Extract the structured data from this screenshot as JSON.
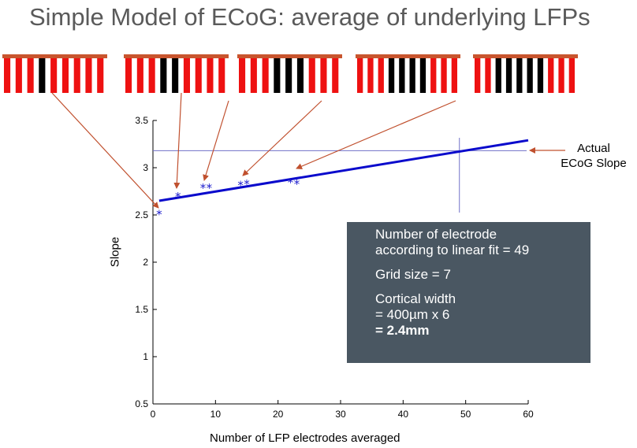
{
  "slide": {
    "title": "Simple Model of ECoG: average of underlying LFPs"
  },
  "combs": [
    {
      "total_teeth": 9,
      "black_teeth": [
        4
      ]
    },
    {
      "total_teeth": 9,
      "black_teeth": [
        4,
        5
      ]
    },
    {
      "total_teeth": 9,
      "black_teeth": [
        4,
        5,
        6
      ]
    },
    {
      "total_teeth": 10,
      "black_teeth": [
        4,
        5,
        6,
        7
      ]
    },
    {
      "total_teeth": 10,
      "black_teeth": [
        3,
        4,
        5,
        6,
        7
      ]
    }
  ],
  "colors": {
    "comb_red": "#ee1111",
    "comb_black": "#000000",
    "comb_bar": "#c8552e",
    "arrow": "#c0502e",
    "fit_line": "#0a0acc",
    "ref_line": "#7070c8",
    "points": "#1a1acc",
    "info_bg": "#4a5762"
  },
  "chart_data": {
    "type": "scatter",
    "xlabel": "Number of LFP electrodes averaged",
    "ylabel": "Slope",
    "xlim": [
      0,
      60
    ],
    "ylim": [
      0.5,
      3.5
    ],
    "xticks": [
      0,
      10,
      20,
      30,
      40,
      50,
      60
    ],
    "yticks": [
      0.5,
      1,
      1.5,
      2,
      2.5,
      3,
      3.5
    ],
    "points": {
      "x": [
        1,
        4,
        8,
        9,
        14,
        15,
        22,
        23
      ],
      "y": [
        2.52,
        2.71,
        2.8,
        2.8,
        2.83,
        2.84,
        2.86,
        2.84
      ]
    },
    "fit_line": {
      "x": [
        1,
        60
      ],
      "y": [
        2.65,
        3.29
      ]
    },
    "reference": {
      "actual_slope": 3.18,
      "electrodes_at_fit": 49
    }
  },
  "annotation": {
    "line1": "Actual",
    "line2": "ECoG Slope"
  },
  "info": {
    "line1": "Number of electrode",
    "line2": "according to linear fit = 49",
    "line3": "Grid size = 7",
    "line4": "Cortical width",
    "line5": "= 400µm x 6",
    "line6": "= 2.4mm"
  }
}
